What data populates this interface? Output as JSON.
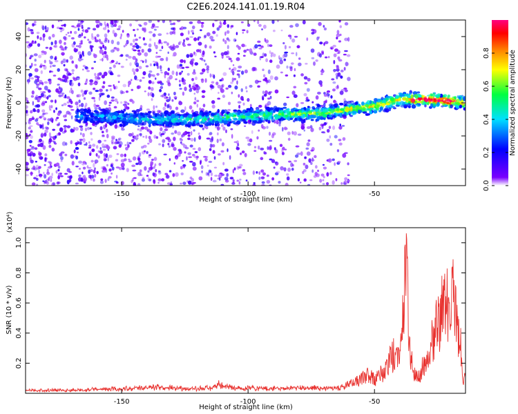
{
  "title": "C2E6.2024.141.01.19.R04",
  "chart_data": [
    {
      "type": "heatmap",
      "xlabel": "Height of straight line (km)",
      "ylabel": "Frequency (Hz)",
      "xlim": [
        -188,
        -14
      ],
      "ylim": [
        -50,
        50
      ],
      "x_ticks": [
        -150,
        -100,
        -50
      ],
      "y_ticks": [
        -40,
        -20,
        0,
        20,
        40
      ],
      "grid": false,
      "ridge": {
        "description_points": [
          {
            "x": -165,
            "y": -8
          },
          {
            "x": -150,
            "y": -9
          },
          {
            "x": -140,
            "y": -10
          },
          {
            "x": -120,
            "y": -10
          },
          {
            "x": -100,
            "y": -8
          },
          {
            "x": -85,
            "y": -7
          },
          {
            "x": -70,
            "y": -6
          },
          {
            "x": -60,
            "y": -4
          },
          {
            "x": -50,
            "y": -2
          },
          {
            "x": -40,
            "y": 2
          },
          {
            "x": -30,
            "y": 2
          },
          {
            "x": -20,
            "y": 1
          },
          {
            "x": -15,
            "y": 0
          }
        ],
        "peak_amplitude_region": [
          -35,
          -18
        ]
      },
      "colorbar": {
        "label": "Normalized spectral amplitude",
        "range": [
          0.0,
          1.0
        ],
        "ticks": [
          "0.0",
          "0.2",
          "0.4",
          "0.6",
          "0.8"
        ],
        "colormap": [
          "#ffffff",
          "#7a00ff",
          "#0000ff",
          "#00e0ff",
          "#00ff40",
          "#ffff00",
          "#ff8000",
          "#ff0000",
          "#ff0080"
        ]
      }
    },
    {
      "type": "line",
      "xlabel": "Height of straight line (km)",
      "ylabel": "SNR (10 * v/v)",
      "y_scale_note": "(x10⁴)",
      "xlim": [
        -188,
        -14
      ],
      "ylim": [
        0,
        1.1
      ],
      "x_ticks": [
        -150,
        -100,
        -50
      ],
      "y_ticks": [
        0.2,
        0.4,
        0.6,
        0.8,
        1.0
      ],
      "grid": false,
      "line_color": "#e8312e",
      "series": [
        {
          "x": [
            -188,
            -175,
            -160,
            -150,
            -142,
            -135,
            -125,
            -115,
            -112,
            -105,
            -100,
            -90,
            -80,
            -75,
            -70,
            -63,
            -60,
            -57,
            -55,
            -52,
            -50,
            -48,
            -46,
            -44,
            -42,
            -40,
            -39,
            -38,
            -37.5,
            -37,
            -36,
            -35,
            -34,
            -32,
            -30,
            -28,
            -26,
            -24,
            -22,
            -21,
            -20,
            -19,
            -18,
            -17,
            -16,
            -15,
            -14
          ],
          "y": [
            0.02,
            0.02,
            0.025,
            0.03,
            0.035,
            0.04,
            0.03,
            0.035,
            0.06,
            0.03,
            0.035,
            0.03,
            0.035,
            0.04,
            0.03,
            0.04,
            0.06,
            0.08,
            0.1,
            0.12,
            0.09,
            0.14,
            0.13,
            0.22,
            0.26,
            0.2,
            0.45,
            0.75,
            1.08,
            0.7,
            0.3,
            0.18,
            0.14,
            0.12,
            0.22,
            0.3,
            0.4,
            0.52,
            0.58,
            0.6,
            0.52,
            0.64,
            0.55,
            0.42,
            0.35,
            0.08,
            0.1
          ]
        }
      ]
    }
  ]
}
